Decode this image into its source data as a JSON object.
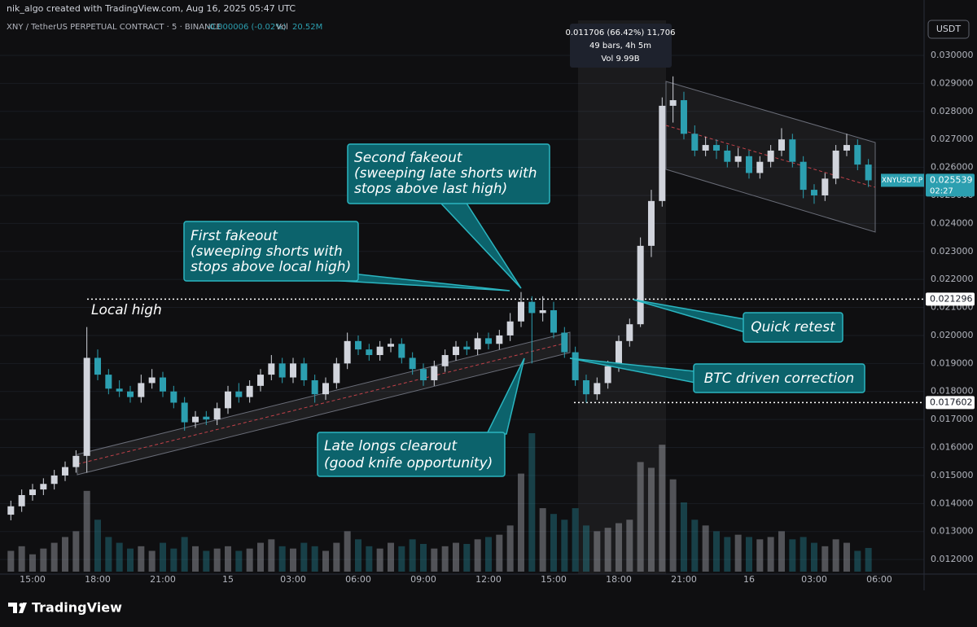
{
  "header": {
    "credit": "nik_algo created with TradingView.com, Aug 16, 2025 05:47 UTC",
    "symbol": "XNY / TetherUS PERPETUAL CONTRACT · 5 · BINANCE",
    "change": "-0.000006 (-0.02%)",
    "vol_label": "Vol",
    "vol_value": "20.52M"
  },
  "currency": "USDT",
  "measure": {
    "line1": "0.011706 (66.42%) 11,706",
    "line2": "49 bars, 4h 5m",
    "line3": "Vol 9.99B"
  },
  "brand": "TradingView",
  "chart_data": {
    "type": "candlestick",
    "categories": [
      null,
      null,
      "15:00",
      null,
      null,
      null,
      null,
      null,
      "18:00",
      null,
      null,
      null,
      null,
      null,
      "21:00",
      null,
      null,
      null,
      null,
      null,
      "15",
      null,
      null,
      null,
      null,
      null,
      "03:00",
      null,
      null,
      null,
      null,
      null,
      "06:00",
      null,
      null,
      null,
      null,
      null,
      "09:00",
      null,
      null,
      null,
      null,
      null,
      "12:00",
      null,
      null,
      null,
      null,
      null,
      "15:00",
      null,
      null,
      null,
      null,
      null,
      "18:00",
      null,
      null,
      null,
      null,
      null,
      "21:00",
      null,
      null,
      null,
      null,
      null,
      "16",
      null,
      null,
      null,
      null,
      null,
      "03:00",
      null,
      null,
      null,
      null,
      null,
      "06:00",
      null
    ],
    "open": [
      0.0136,
      0.0139,
      0.0143,
      0.0145,
      0.0147,
      0.015,
      0.0153,
      0.0157,
      0.0192,
      0.0186,
      0.0181,
      0.018,
      0.0178,
      0.0183,
      0.0185,
      0.018,
      0.0176,
      0.0169,
      0.0171,
      0.017,
      0.0174,
      0.018,
      0.0178,
      0.0182,
      0.0186,
      0.019,
      0.0185,
      0.019,
      0.0184,
      0.0179,
      0.0183,
      0.019,
      0.0198,
      0.0195,
      0.0193,
      0.0196,
      0.0197,
      0.0192,
      0.0188,
      0.0184,
      0.0189,
      0.0193,
      0.0196,
      0.0195,
      0.0199,
      0.0197,
      0.02,
      0.0205,
      0.0212,
      0.0208,
      0.0209,
      0.0201,
      0.0194,
      0.0184,
      0.0179,
      0.0183,
      0.0189,
      0.0198,
      0.0204,
      0.0232,
      0.0248,
      0.0282,
      0.0284,
      0.0272,
      0.0266,
      0.0268,
      0.0266,
      0.0262,
      0.0264,
      0.0258,
      0.0262,
      0.0266,
      0.027,
      0.0262,
      0.0252,
      0.025,
      0.0256,
      0.0266,
      0.0268,
      0.0261,
      null,
      null
    ],
    "high": [
      0.0141,
      0.0145,
      0.0147,
      0.0149,
      0.0152,
      0.0155,
      0.0159,
      0.0203,
      0.0195,
      0.0188,
      0.0184,
      0.0182,
      0.0186,
      0.0188,
      0.0187,
      0.0182,
      0.0178,
      0.0173,
      0.0173,
      0.0176,
      0.0182,
      0.0183,
      0.0184,
      0.0188,
      0.0193,
      0.0192,
      0.0192,
      0.0192,
      0.0186,
      0.0185,
      0.0192,
      0.0201,
      0.02,
      0.0197,
      0.0198,
      0.0199,
      0.0199,
      0.0194,
      0.019,
      0.0191,
      0.0195,
      0.0198,
      0.0198,
      0.0201,
      0.0201,
      0.0202,
      0.0208,
      0.02155,
      0.0214,
      0.0214,
      0.0212,
      0.0203,
      0.0196,
      0.0186,
      0.0185,
      0.0191,
      0.02,
      0.0206,
      0.0235,
      0.0252,
      0.0285,
      0.02925,
      0.0287,
      0.0275,
      0.0271,
      0.027,
      0.0268,
      0.0267,
      0.0266,
      0.0264,
      0.0268,
      0.0274,
      0.0272,
      0.0264,
      0.0254,
      0.0258,
      0.0268,
      0.0272,
      0.027,
      0.0263,
      null,
      null
    ],
    "low": [
      0.0134,
      0.0137,
      0.0141,
      0.0143,
      0.0145,
      0.0148,
      0.0151,
      0.0151,
      0.0184,
      0.0179,
      0.0178,
      0.0176,
      0.0176,
      0.0181,
      0.0178,
      0.0174,
      0.0166,
      0.0167,
      0.0168,
      0.0168,
      0.0172,
      0.0176,
      0.0176,
      0.018,
      0.0184,
      0.0183,
      0.0183,
      0.0182,
      0.0176,
      0.0177,
      0.0181,
      0.0188,
      0.0193,
      0.0191,
      0.0191,
      0.0194,
      0.019,
      0.0186,
      0.0182,
      0.0182,
      0.0187,
      0.0191,
      0.0193,
      0.0193,
      0.0195,
      0.0195,
      0.0198,
      0.0203,
      0.019,
      0.0205,
      0.0199,
      0.0192,
      0.0182,
      0.017602,
      0.0177,
      0.0181,
      0.0187,
      0.0196,
      0.0203,
      0.0228,
      0.0246,
      0.0276,
      0.027,
      0.0264,
      0.0264,
      0.0263,
      0.026,
      0.026,
      0.0256,
      0.0256,
      0.026,
      0.0264,
      0.026,
      0.0249,
      0.0247,
      0.0248,
      0.0254,
      0.0264,
      0.0259,
      0.0253,
      null,
      null
    ],
    "close": [
      0.0139,
      0.0143,
      0.0145,
      0.0147,
      0.015,
      0.0153,
      0.0157,
      0.0192,
      0.0186,
      0.0181,
      0.018,
      0.0178,
      0.0183,
      0.0185,
      0.018,
      0.0176,
      0.0169,
      0.0171,
      0.017,
      0.0174,
      0.018,
      0.0178,
      0.0182,
      0.0186,
      0.019,
      0.0185,
      0.019,
      0.0184,
      0.0179,
      0.0183,
      0.019,
      0.0198,
      0.0195,
      0.0193,
      0.0196,
      0.0197,
      0.0192,
      0.0188,
      0.0184,
      0.0189,
      0.0193,
      0.0196,
      0.0195,
      0.0199,
      0.0197,
      0.02,
      0.0205,
      0.0212,
      0.0208,
      0.0209,
      0.0201,
      0.0194,
      0.0184,
      0.0179,
      0.0183,
      0.0189,
      0.0198,
      0.0204,
      0.0232,
      0.0248,
      0.0282,
      0.0284,
      0.0272,
      0.0266,
      0.0268,
      0.0266,
      0.0262,
      0.0264,
      0.0258,
      0.0262,
      0.0266,
      0.027,
      0.0262,
      0.0252,
      0.025,
      0.0256,
      0.0266,
      0.0268,
      0.0261,
      0.025539,
      null,
      null
    ],
    "volume": [
      18,
      22,
      15,
      20,
      25,
      30,
      35,
      70,
      45,
      30,
      25,
      20,
      22,
      18,
      25,
      20,
      30,
      22,
      18,
      20,
      22,
      18,
      20,
      25,
      28,
      22,
      20,
      25,
      22,
      18,
      25,
      35,
      28,
      22,
      20,
      25,
      22,
      28,
      24,
      20,
      22,
      25,
      24,
      28,
      30,
      32,
      40,
      85,
      120,
      55,
      50,
      45,
      55,
      40,
      35,
      38,
      42,
      45,
      95,
      90,
      110,
      80,
      60,
      45,
      40,
      35,
      30,
      32,
      30,
      28,
      30,
      35,
      28,
      30,
      25,
      22,
      28,
      25,
      18,
      20.52,
      null,
      null
    ],
    "up_color": "#d1d4dc",
    "down_color": "#2c9fb0",
    "ylim": [
      0.01148,
      0.03125
    ],
    "yticks": [
      {
        "value": 0.012,
        "label": "0.012000"
      },
      {
        "value": 0.013,
        "label": "0.013000"
      },
      {
        "value": 0.014,
        "label": "0.014000"
      },
      {
        "value": 0.015,
        "label": "0.015000"
      },
      {
        "value": 0.016,
        "label": "0.016000"
      },
      {
        "value": 0.017,
        "label": "0.017000"
      },
      {
        "value": 0.018,
        "label": "0.018000"
      },
      {
        "value": 0.019,
        "label": "0.019000"
      },
      {
        "value": 0.02,
        "label": "0.020000"
      },
      {
        "value": 0.021,
        "label": "0.021000"
      },
      {
        "value": 0.022,
        "label": "0.022000"
      },
      {
        "value": 0.023,
        "label": "0.023000"
      },
      {
        "value": 0.024,
        "label": "0.024000"
      },
      {
        "value": 0.025,
        "label": "0.025000"
      },
      {
        "value": 0.026,
        "label": "0.026000"
      },
      {
        "value": 0.027,
        "label": "0.027000"
      },
      {
        "value": 0.028,
        "label": "0.028000"
      },
      {
        "value": 0.029,
        "label": "0.029000"
      },
      {
        "value": 0.03,
        "label": "0.030000"
      }
    ],
    "grid": true,
    "levels": [
      {
        "value": 0.021296,
        "note": "Local high"
      },
      {
        "value": 0.017602
      }
    ],
    "last_price": {
      "name": "XNYUSDT.P",
      "value": 0.025539,
      "countdown": "02:27"
    },
    "annotations": [
      {
        "lines": [
          "First fakeout",
          "(sweeping shorts with",
          "stops above local high)"
        ]
      },
      {
        "lines": [
          "Second fakeout",
          "(sweeping late shorts with",
          "stops above last high)"
        ]
      },
      {
        "lines": [
          "Quick retest"
        ]
      },
      {
        "lines": [
          "BTC driven correction"
        ]
      },
      {
        "lines": [
          "Late longs clearout",
          "(good knife opportunity)"
        ]
      }
    ]
  }
}
